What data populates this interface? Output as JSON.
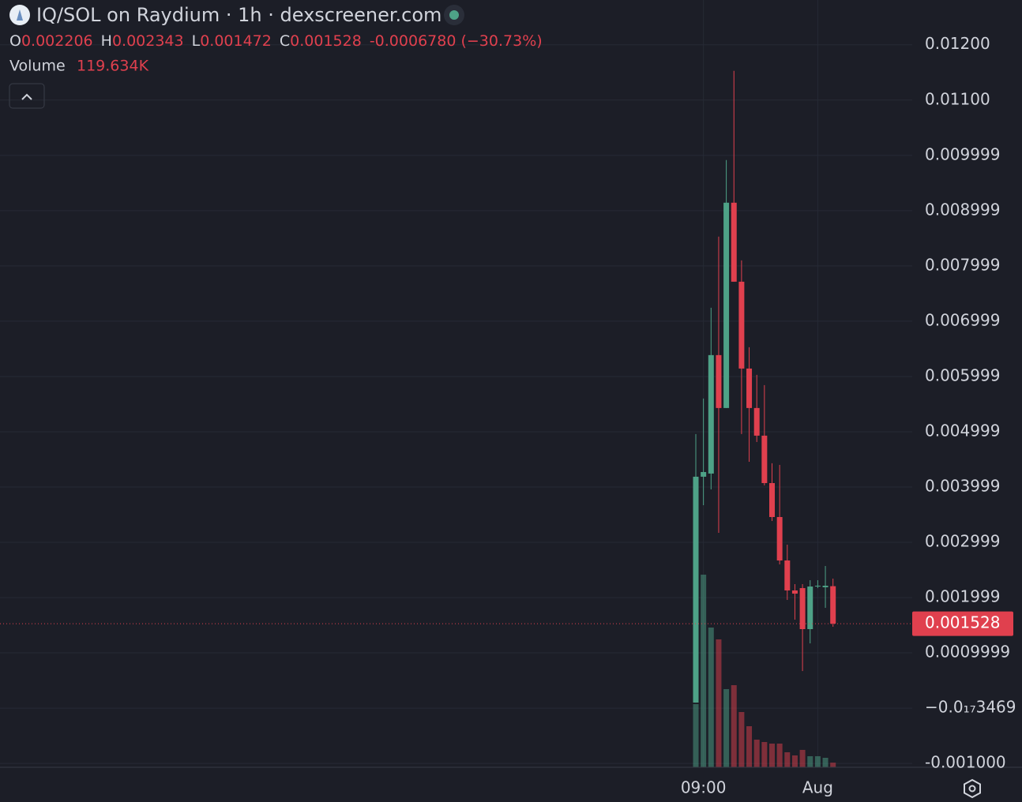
{
  "header": {
    "title": "IQ/SOL on Raydium · 1h · dexscreener.com",
    "ohlc": [
      {
        "key": "O",
        "value": "0.002206"
      },
      {
        "key": "H",
        "value": "0.002343"
      },
      {
        "key": "L",
        "value": "0.001472"
      },
      {
        "key": "C",
        "value": "0.001528"
      }
    ],
    "change": "-0.0006780 (−30.73%)",
    "volume_label": "Volume",
    "volume_value": "119.634K"
  },
  "chart_data": {
    "type": "candlestick",
    "x": [
      null,
      "09:00",
      null,
      null,
      null,
      null,
      null,
      null,
      null,
      null,
      null,
      null,
      null,
      null,
      null,
      null,
      "Aug",
      null,
      null
    ],
    "open": [
      0.0001,
      0.004186,
      0.004243,
      0.006386,
      0.005429,
      0.009143,
      0.007714,
      0.006143,
      0.005429,
      0.004929,
      0.004071,
      0.003457,
      0.002671,
      0.002129,
      0.002171,
      0.001429,
      0.0022,
      0.002186,
      0.002206
    ],
    "high": [
      0.004957,
      0.0056,
      0.007243,
      0.008529,
      0.009914,
      0.011529,
      0.0081,
      0.006529,
      0.006029,
      0.005843,
      0.004429,
      0.0044,
      0.002957,
      0.002243,
      0.002243,
      0.002314,
      0.002314,
      0.002571,
      0.002343
    ],
    "low": [
      0.0001,
      0.003671,
      0.003957,
      0.003171,
      0.005429,
      0.007714,
      0.004957,
      0.004457,
      0.004814,
      0.004029,
      0.003386,
      0.0026,
      0.001957,
      0.0016,
      0.000671,
      0.001171,
      0.002171,
      0.001814,
      0.001472
    ],
    "close": [
      0.004186,
      0.004271,
      0.006386,
      0.005429,
      0.009143,
      0.007714,
      0.006143,
      0.005429,
      0.004929,
      0.004071,
      0.003457,
      0.002671,
      0.002129,
      0.002071,
      0.001429,
      0.0022,
      0.002214,
      0.002214,
      0.001528
    ],
    "volume": [
      1646,
      5021,
      3642,
      3334,
      2037,
      2140,
      1440,
      1070,
      720,
      658,
      617,
      617,
      391,
      309,
      453,
      288,
      288,
      247,
      119.634
    ],
    "volume_axis": "y2",
    "up_color": "#4ea287",
    "down_color": "#e0404e",
    "ylim": [
      -0.00107,
      0.01281
    ],
    "yticks": [
      {
        "value": 0.012,
        "label": "0.01200"
      },
      {
        "value": 0.011,
        "label": "0.01100"
      },
      0.009999,
      0.008999,
      0.007999,
      0.006999,
      0.005999,
      0.004999,
      0.003999,
      0.002999,
      0.001999,
      0.0009999,
      {
        "value": -3.469e-18,
        "label": "−0.0₁₇3469"
      },
      {
        "value": -0.001,
        "label": "-0.001000"
      }
    ],
    "y2lim": [
      0,
      20000
    ],
    "grid": true
  }
}
